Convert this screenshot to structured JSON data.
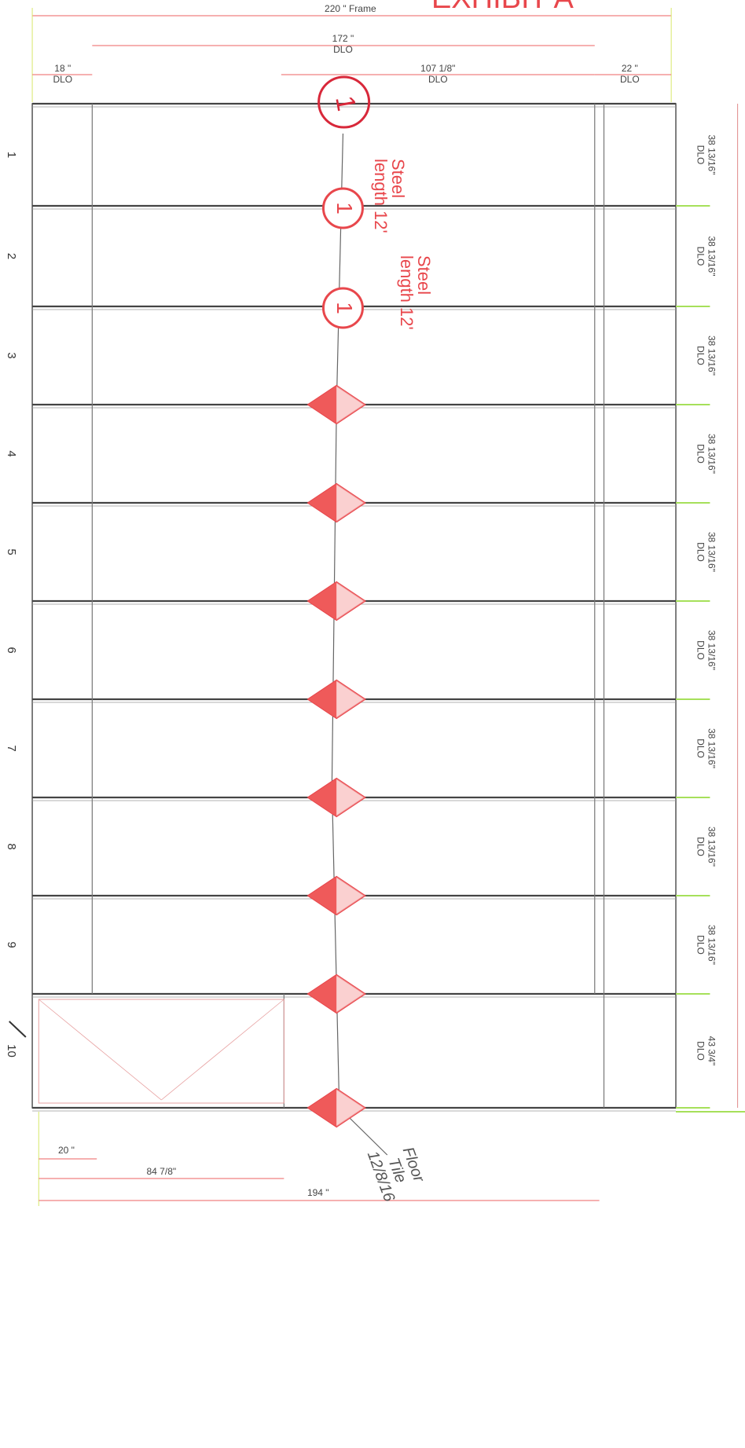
{
  "header": {
    "title": "EXHIBIT A",
    "frame": "220 \" Frame"
  },
  "top_dimensions": [
    {
      "size": "172 \"",
      "type": "DLO"
    },
    {
      "size": "18 \"",
      "type": "DLO"
    },
    {
      "size": "107 1/8\"",
      "type": "DLO"
    },
    {
      "size": "22 \"",
      "type": "DLO"
    }
  ],
  "rows": [
    {
      "number": "1",
      "size": "38 13/16\"",
      "type": "DLO"
    },
    {
      "number": "2",
      "size": "38 13/16\"",
      "type": "DLO"
    },
    {
      "number": "3",
      "size": "38 13/16\"",
      "type": "DLO"
    },
    {
      "number": "4",
      "size": "38 13/16\"",
      "type": "DLO"
    },
    {
      "number": "5",
      "size": "38 13/16\"",
      "type": "DLO"
    },
    {
      "number": "6",
      "size": "38 13/16\"",
      "type": "DLO"
    },
    {
      "number": "7",
      "size": "38 13/16\"",
      "type": "DLO"
    },
    {
      "number": "8",
      "size": "38 13/16\"",
      "type": "DLO"
    },
    {
      "number": "9",
      "size": "38 13/16\"",
      "type": "DLO"
    },
    {
      "number": "10",
      "size": "43 3/4\"",
      "type": "DLO"
    }
  ],
  "markers": {
    "handwritten": "1",
    "circles": [
      "1",
      "1"
    ]
  },
  "steel_notes": [
    {
      "line1": "Steel",
      "line2": "length 12'"
    },
    {
      "line1": "Steel",
      "line2": "length 12'"
    }
  ],
  "bottom_dimensions": [
    "20 \"",
    "84 7/8\"",
    "194 \""
  ],
  "handwritten_note": {
    "line1": "Floor",
    "line2": "Tile",
    "line3": "12/8/16"
  }
}
